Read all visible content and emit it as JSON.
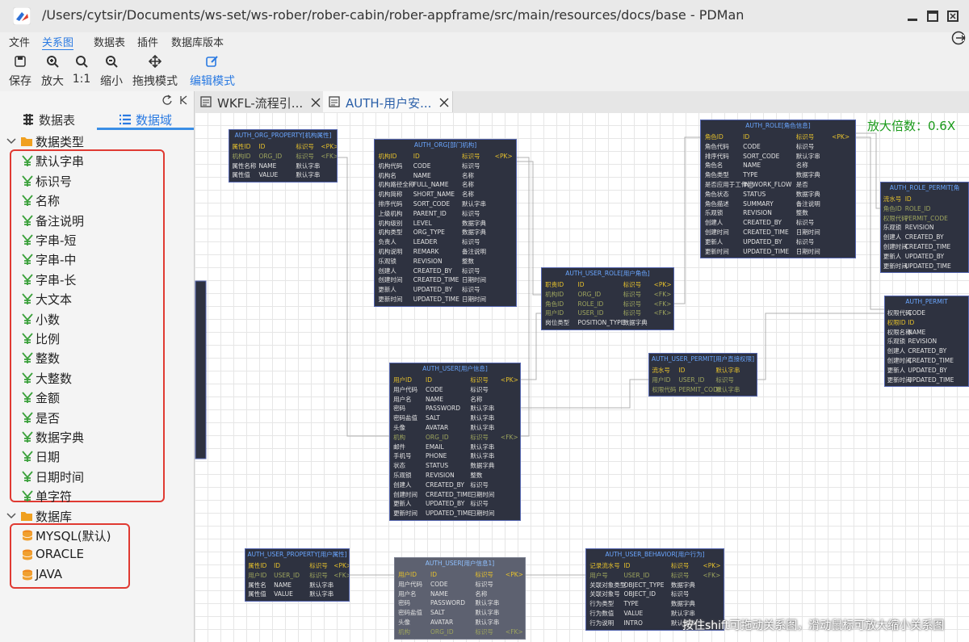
{
  "window": {
    "title": "/Users/cytsir/Documents/ws-set/ws-rober/rober-cabin/rober-appframe/src/main/resources/docs/base - PDMan"
  },
  "menu": {
    "items": [
      "文件",
      "关系图",
      "数据表",
      "插件",
      "数据库版本"
    ]
  },
  "toolbar": {
    "items": [
      "保存",
      "放大",
      "1:1",
      "缩小",
      "拖拽模式",
      "编辑模式"
    ]
  },
  "sidebar": {
    "tabs": [
      "数据表",
      "数据域"
    ],
    "tree": [
      {
        "label": "数据类型",
        "items": [
          "默认字串",
          "标识号",
          "名称",
          "备注说明",
          "字串-短",
          "字串-中",
          "字串-长",
          "大文本",
          "小数",
          "比例",
          "整数",
          "大整数",
          "金额",
          "是否",
          "数据字典",
          "日期",
          "日期时间",
          "单字符"
        ]
      },
      {
        "label": "数据库",
        "items": [
          "MYSQL(默认)",
          "ORACLE",
          "JAVA"
        ]
      }
    ]
  },
  "editor": {
    "tabs": [
      "WKFL-流程引...",
      "AUTH-用户安..."
    ],
    "zoom": "放大倍数：0.6X",
    "hint": "按住shift可拖动关系图，滑动鼠标可放大缩小关系图"
  },
  "diagram": {
    "entities": [
      {
        "title": "AUTH_ORG_PROPERTY[机构属性]",
        "rows": [
          [
            "属性ID",
            "ID",
            "标识号",
            "<PK>"
          ],
          [
            "机构ID",
            "ORG_ID",
            "标识号",
            "<FK>"
          ],
          [
            "属性名称",
            "NAME",
            "默认字串"
          ],
          [
            "属性值",
            "VALUE",
            "默认字串"
          ]
        ]
      },
      {
        "title": "AUTH_ORG[部门机构]",
        "rows": [
          [
            "机构ID",
            "ID",
            "标识号",
            "<PK>"
          ],
          [
            "机构代码",
            "CODE",
            "标识号"
          ],
          [
            "机构名",
            "NAME",
            "名称"
          ],
          [
            "机构路径全称",
            "FULL_NAME",
            "名称"
          ],
          [
            "机构简称",
            "SHORT_NAME",
            "名称"
          ],
          [
            "排序代码",
            "SORT_CODE",
            "默认字串"
          ],
          [
            "上级机构",
            "PARENT_ID",
            "标识号"
          ],
          [
            "机构级别",
            "LEVEL",
            "数据字典"
          ],
          [
            "机构类型",
            "ORG_TYPE",
            "数据字典"
          ],
          [
            "负责人",
            "LEADER",
            "标识号"
          ],
          [
            "机构说明",
            "REMARK",
            "备注说明"
          ],
          [
            "乐观锁",
            "REVISION",
            "整数"
          ],
          [
            "创建人",
            "CREATED_BY",
            "标识号"
          ],
          [
            "创建时间",
            "CREATED_TIME",
            "日期时间"
          ],
          [
            "更新人",
            "UPDATED_BY",
            "标识号"
          ],
          [
            "更新时间",
            "UPDATED_TIME",
            "日期时间"
          ]
        ]
      },
      {
        "title": "AUTH_ROLE[角色信息]",
        "rows": [
          [
            "角色ID",
            "ID",
            "标识号",
            "<PK>"
          ],
          [
            "角色代码",
            "CODE",
            "标识号"
          ],
          [
            "排序代码",
            "SORT_CODE",
            "默认字串"
          ],
          [
            "角色名",
            "NAME",
            "名称"
          ],
          [
            "角色类型",
            "TYPE",
            "数据字典"
          ],
          [
            "是否应用于工作流",
            "IN_WORK_FLOW",
            "是否"
          ],
          [
            "角色状态",
            "STATUS",
            "数据字典"
          ],
          [
            "角色描述",
            "SUMMARY",
            "备注说明"
          ],
          [
            "乐观锁",
            "REVISION",
            "整数"
          ],
          [
            "创建人",
            "CREATED_BY",
            "标识号"
          ],
          [
            "创建时间",
            "CREATED_TIME",
            "日期时间"
          ],
          [
            "更新人",
            "UPDATED_BY",
            "标识号"
          ],
          [
            "更新时间",
            "UPDATED_TIME",
            "日期时间"
          ]
        ]
      },
      {
        "title": "AUTH_ROLE_PERMIT[角",
        "rows": [
          [
            "流水号",
            "ID"
          ],
          [
            "角色ID",
            "ROLE_ID"
          ],
          [
            "权限代码",
            "PERMIT_CODE"
          ],
          [
            "乐观锁",
            "REVISION"
          ],
          [
            "创建人",
            "CREATED_BY"
          ],
          [
            "创建时间",
            "CREATED_TIME"
          ],
          [
            "更新人",
            "UPDATED_BY"
          ],
          [
            "更新时间",
            "UPDATED_TIME"
          ]
        ]
      },
      {
        "title": "AUTH_USER_ROLE[用户角色]",
        "rows": [
          [
            "职责ID",
            "ID",
            "标识号",
            "<PK>"
          ],
          [
            "机构ID",
            "ORG_ID",
            "标识号",
            "<FK>"
          ],
          [
            "角色ID",
            "ROLE_ID",
            "标识号",
            "<FK>"
          ],
          [
            "用户ID",
            "USER_ID",
            "标识号",
            "<FK>"
          ],
          [
            "岗位类型",
            "POSITION_TYPE",
            "数据字典"
          ]
        ]
      },
      {
        "title": "AUTH_PERMIT",
        "rows": [
          [
            "权限代码",
            "CODE"
          ],
          [
            "权限ID",
            "ID"
          ],
          [
            "权限名称",
            "NAME"
          ],
          [
            "乐观锁",
            "REVISION"
          ],
          [
            "创建人",
            "CREATED_BY"
          ],
          [
            "创建时间",
            "CREATED_TIME"
          ],
          [
            "更新人",
            "UPDATED_BY"
          ],
          [
            "更新时间",
            "UPDATED_TIME"
          ]
        ]
      },
      {
        "title": "AUTH_USER_PERMIT[用户直接权限]",
        "rows": [
          [
            "流水号",
            "ID",
            "默认字串"
          ],
          [
            "用户ID",
            "USER_ID",
            "标识号"
          ],
          [
            "权限代码",
            "PERMIT_CODE",
            "默认字串"
          ]
        ]
      },
      {
        "title": "AUTH_USER[用户信息]",
        "rows": [
          [
            "用户ID",
            "ID",
            "标识号",
            "<PK>"
          ],
          [
            "用户代码",
            "CODE",
            "标识号"
          ],
          [
            "用户名",
            "NAME",
            "名称"
          ],
          [
            "密码",
            "PASSWORD",
            "默认字串"
          ],
          [
            "密码盐值",
            "SALT",
            "默认字串"
          ],
          [
            "头像",
            "AVATAR",
            "默认字串"
          ],
          [
            "机构",
            "ORG_ID",
            "标识号",
            "<FK>"
          ],
          [
            "邮件",
            "EMAIL",
            "默认字串"
          ],
          [
            "手机号",
            "PHONE",
            "默认字串"
          ],
          [
            "状态",
            "STATUS",
            "数据字典"
          ],
          [
            "乐观锁",
            "REVISION",
            "整数"
          ],
          [
            "创建人",
            "CREATED_BY",
            "标识号"
          ],
          [
            "创建时间",
            "CREATED_TIME",
            "日期时间"
          ],
          [
            "更新人",
            "UPDATED_BY",
            "标识号"
          ],
          [
            "更新时间",
            "UPDATED_TIME",
            "日期时间"
          ]
        ]
      },
      {
        "title": "AUTH_USER_PROPERTY[用户属性]",
        "rows": [
          [
            "属性ID",
            "ID",
            "标识号",
            "<PK>"
          ],
          [
            "用户ID",
            "USER_ID",
            "标识号",
            "<FK>"
          ],
          [
            "属性名",
            "NAME",
            "默认字串"
          ],
          [
            "属性值",
            "VALUE",
            "默认字串"
          ]
        ]
      },
      {
        "title": "AUTH_USER[用户信息1]",
        "rows": [
          [
            "用户ID",
            "ID",
            "标识号",
            "<PK>"
          ],
          [
            "用户代码",
            "CODE",
            "标识号"
          ],
          [
            "用户名",
            "NAME",
            "名称"
          ],
          [
            "密码",
            "PASSWORD",
            "默认字串"
          ],
          [
            "密码盐值",
            "SALT",
            "默认字串"
          ],
          [
            "头像",
            "AVATAR",
            "默认字串"
          ],
          [
            "机构",
            "ORG_ID",
            "标识号",
            "<FK>"
          ]
        ]
      },
      {
        "title": "AUTH_USER_BEHAVIOR[用户行为]",
        "rows": [
          [
            "记录流水号",
            "ID",
            "标识号",
            "<PK>"
          ],
          [
            "用户号",
            "USER_ID",
            "标识号",
            "<FK>"
          ],
          [
            "关联对象类型",
            "OBJECT_TYPE",
            "数据字典"
          ],
          [
            "关联对象号",
            "OBJECT_ID",
            "标识号"
          ],
          [
            "行为类型",
            "TYPE",
            "数据字典"
          ],
          [
            "行为数值",
            "VALUE",
            "默认字串"
          ],
          [
            "行为说明",
            "INTRO",
            "默认字串"
          ]
        ]
      }
    ]
  }
}
